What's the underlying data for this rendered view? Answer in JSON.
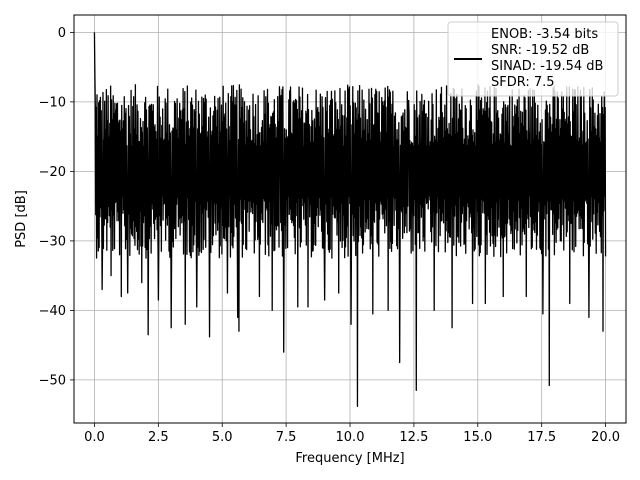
{
  "chart_data": {
    "type": "line",
    "xlabel": "Frequency [MHz]",
    "ylabel": "PSD [dB]",
    "xlim": [
      -0.8,
      20.8
    ],
    "ylim": [
      -56.2,
      2.5
    ],
    "grid": true,
    "legend_placement": "top-right",
    "x_ticks": [
      0.0,
      2.5,
      5.0,
      7.5,
      10.0,
      12.5,
      15.0,
      17.5,
      20.0
    ],
    "x_tick_labels": [
      "0.0",
      "2.5",
      "5.0",
      "7.5",
      "10.0",
      "12.5",
      "15.0",
      "17.5",
      "20.0"
    ],
    "y_ticks": [
      0,
      -10,
      -20,
      -30,
      -40,
      -50
    ],
    "y_tick_labels": [
      "0",
      "−10",
      "−20",
      "−30",
      "−40",
      "−50"
    ],
    "legend_lines": [
      "ENOB: -3.54 bits",
      "SNR: -19.52 dB",
      "SINAD: -19.54 dB",
      "SFDR: 7.5"
    ],
    "line_color": "#000000",
    "series": [
      {
        "n_points": 1200,
        "x_range": [
          0,
          20
        ],
        "peak": {
          "x": 0.0,
          "y": 0.0
        },
        "noise_floor_mean": -20.5,
        "noise_band": [
          -12,
          -29
        ],
        "upper_envelope_max": -9.5,
        "dips": [
          {
            "x": 0.3,
            "y": -37.0
          },
          {
            "x": 0.65,
            "y": -35.0
          },
          {
            "x": 1.05,
            "y": -38.0
          },
          {
            "x": 1.3,
            "y": -37.5
          },
          {
            "x": 1.85,
            "y": -36.0
          },
          {
            "x": 2.1,
            "y": -43.5
          },
          {
            "x": 2.5,
            "y": -38.5
          },
          {
            "x": 3.0,
            "y": -42.5
          },
          {
            "x": 3.55,
            "y": -42.0
          },
          {
            "x": 4.0,
            "y": -39.5
          },
          {
            "x": 4.5,
            "y": -43.8
          },
          {
            "x": 5.2,
            "y": -37.5
          },
          {
            "x": 5.6,
            "y": -41.0
          },
          {
            "x": 5.65,
            "y": -43.0
          },
          {
            "x": 6.45,
            "y": -38.0
          },
          {
            "x": 6.95,
            "y": -40.0
          },
          {
            "x": 7.4,
            "y": -46.0
          },
          {
            "x": 7.95,
            "y": -39.5
          },
          {
            "x": 8.35,
            "y": -39.5
          },
          {
            "x": 9.0,
            "y": -38.5
          },
          {
            "x": 9.55,
            "y": -37.5
          },
          {
            "x": 10.05,
            "y": -42.0
          },
          {
            "x": 10.3,
            "y": -53.8
          },
          {
            "x": 10.9,
            "y": -40.5
          },
          {
            "x": 11.5,
            "y": -40.0
          },
          {
            "x": 11.95,
            "y": -47.5
          },
          {
            "x": 12.6,
            "y": -51.5
          },
          {
            "x": 13.3,
            "y": -40.0
          },
          {
            "x": 14.0,
            "y": -42.5
          },
          {
            "x": 14.8,
            "y": -39.0
          },
          {
            "x": 15.3,
            "y": -39.0
          },
          {
            "x": 16.0,
            "y": -38.0
          },
          {
            "x": 16.9,
            "y": -38.0
          },
          {
            "x": 17.55,
            "y": -40.5
          },
          {
            "x": 17.8,
            "y": -50.8
          },
          {
            "x": 18.6,
            "y": -39.0
          },
          {
            "x": 19.35,
            "y": -41.0
          },
          {
            "x": 19.9,
            "y": -43.0
          }
        ],
        "spikes": [
          {
            "x": 0.1,
            "y": -9.0
          },
          {
            "x": 6.8,
            "y": -10.2
          },
          {
            "x": 7.25,
            "y": -9.6
          },
          {
            "x": 12.3,
            "y": -9.8
          },
          {
            "x": 16.55,
            "y": -9.7
          },
          {
            "x": 17.25,
            "y": -10.2
          }
        ]
      }
    ]
  }
}
